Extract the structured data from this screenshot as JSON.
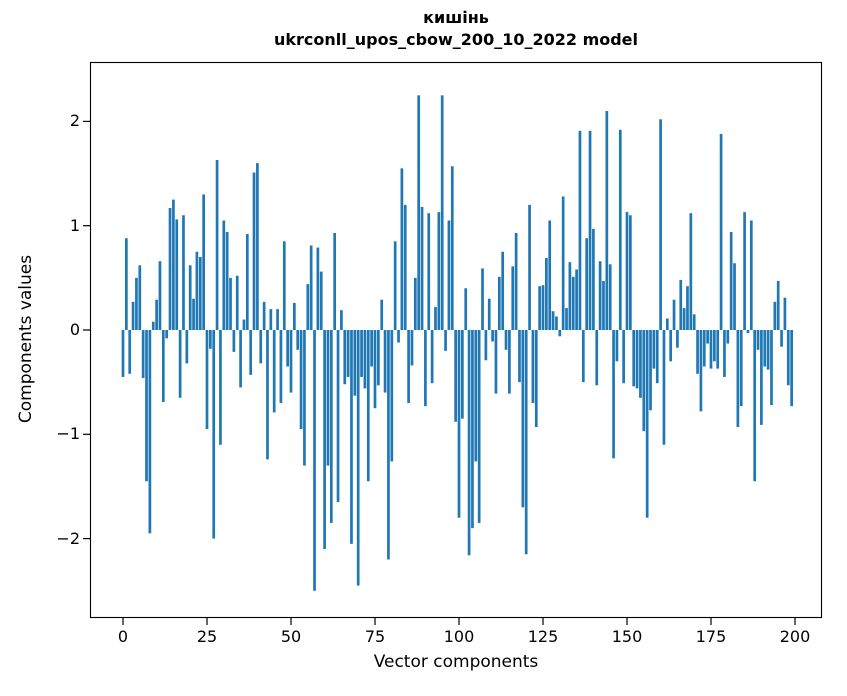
{
  "figure": {
    "background": "#ffffff",
    "title_lines": [
      "кишінь",
      "ukrconll_upos_cbow_200_10_2022 model"
    ]
  },
  "chart_data": {
    "type": "bar",
    "title": "кишінь",
    "subtitle": "ukrconll_upos_cbow_200_10_2022 model",
    "xlabel": "Vector components",
    "ylabel": "Components values",
    "x_tick_labels": [
      0,
      25,
      50,
      75,
      100,
      125,
      150,
      175,
      200
    ],
    "y_tick_labels": [
      -2,
      -1,
      0,
      1,
      2
    ],
    "xlim": [
      -10,
      208
    ],
    "ylim": [
      -2.76,
      2.57
    ],
    "grid": false,
    "legend_position": "none",
    "bar_color": "#1f77b4",
    "axis_color": "#000000",
    "n_bars": 200,
    "x_start": 0,
    "x_step": 1,
    "values": [
      -0.45,
      0.88,
      -0.42,
      0.27,
      0.5,
      0.62,
      -0.46,
      -1.45,
      -1.95,
      0.08,
      0.29,
      0.66,
      -0.69,
      -0.08,
      1.17,
      1.25,
      1.06,
      -0.65,
      1.1,
      -0.32,
      0.62,
      0.3,
      0.75,
      0.7,
      1.3,
      -0.95,
      -0.18,
      -2.0,
      1.63,
      -1.1,
      1.05,
      0.94,
      0.5,
      -0.21,
      0.52,
      -0.55,
      0.1,
      0.92,
      -0.43,
      1.51,
      1.6,
      -0.32,
      0.27,
      -1.24,
      0.2,
      -0.79,
      0.2,
      -0.7,
      0.85,
      -0.35,
      -0.6,
      0.26,
      -0.19,
      -0.95,
      -1.3,
      0.44,
      0.81,
      -2.5,
      0.79,
      0.56,
      -2.1,
      -1.3,
      -1.85,
      0.93,
      -1.65,
      0.19,
      -0.52,
      -0.45,
      -2.05,
      -0.63,
      -2.45,
      -0.45,
      -0.56,
      -1.45,
      -0.35,
      -0.75,
      -0.53,
      0.29,
      -0.6,
      -2.2,
      -1.26,
      0.85,
      -0.12,
      1.55,
      1.2,
      -0.7,
      -0.34,
      0.5,
      2.25,
      1.18,
      -0.73,
      1.12,
      -0.51,
      0.22,
      1.13,
      2.25,
      -0.2,
      1.05,
      1.57,
      -0.88,
      -1.8,
      -0.85,
      0.4,
      -2.16,
      -1.9,
      -1.26,
      -1.85,
      0.59,
      -0.29,
      0.3,
      -0.11,
      -0.61,
      0.51,
      0.75,
      -0.19,
      -0.61,
      0.61,
      0.93,
      -0.5,
      -1.7,
      -2.15,
      1.2,
      -0.7,
      -0.93,
      0.42,
      0.43,
      0.69,
      1.05,
      0.18,
      0.13,
      -0.06,
      1.28,
      0.21,
      0.65,
      0.51,
      0.58,
      1.91,
      -0.5,
      0.88,
      1.91,
      0.97,
      -0.53,
      0.66,
      0.47,
      2.1,
      0.63,
      -1.23,
      -0.3,
      1.92,
      -0.51,
      1.13,
      1.1,
      -0.54,
      -0.56,
      -0.65,
      -0.97,
      -1.8,
      -0.77,
      -0.37,
      -0.51,
      2.02,
      -1.1,
      0.11,
      -0.3,
      0.29,
      -0.17,
      0.48,
      0.21,
      0.42,
      1.12,
      0.15,
      -0.42,
      -0.78,
      -0.35,
      -0.13,
      -0.37,
      -0.3,
      -0.37,
      1.88,
      -0.45,
      -0.13,
      0.94,
      0.64,
      -0.93,
      -0.73,
      1.13,
      -0.03,
      1.05,
      -1.45,
      -0.19,
      -0.91,
      -0.35,
      -0.38,
      -0.72,
      0.27,
      0.47,
      -0.16,
      0.31,
      -0.53,
      -0.73
    ]
  }
}
